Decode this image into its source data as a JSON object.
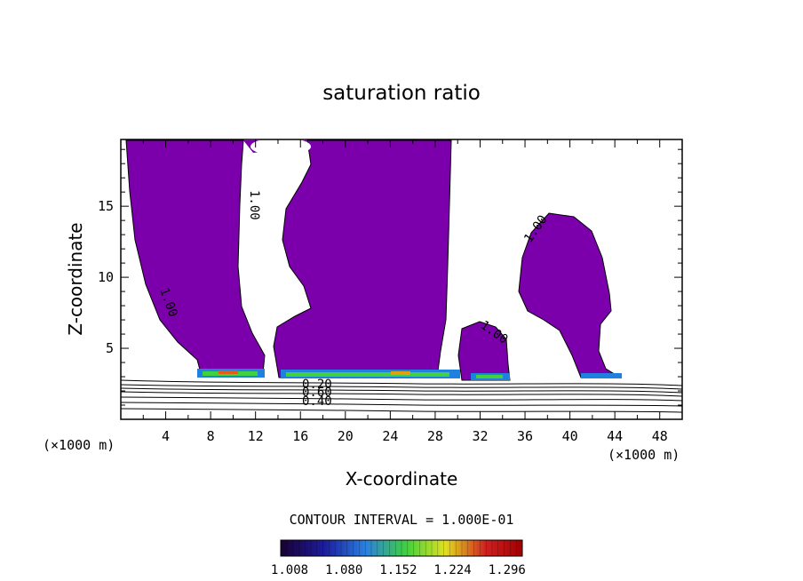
{
  "chart_data": {
    "type": "contour",
    "title": "saturation ratio",
    "xlabel": "X-coordinate",
    "ylabel": "Z-coordinate",
    "x_unit_left": "(×1000 m)",
    "x_unit_right": "(×1000 m)",
    "xlim": [
      0,
      50
    ],
    "ylim": [
      0,
      19.7
    ],
    "x_ticks": [
      4,
      8,
      12,
      16,
      20,
      24,
      28,
      32,
      36,
      40,
      44,
      48
    ],
    "y_ticks": [
      5,
      10,
      15
    ],
    "contour_labels": [
      "1.00",
      "1.00",
      "1.00",
      "1.00",
      "0.40",
      "0.60",
      "0.20"
    ],
    "contour_interval_text": "CONTOUR INTERVAL = 1.000E-01",
    "colorbar_ticks": [
      "1.008",
      "1.080",
      "1.152",
      "1.224",
      "1.296"
    ],
    "colors": {
      "fill": "#7b00ab",
      "colorbar_stops": [
        "#1a0033",
        "#1c1c9c",
        "#2a7fe0",
        "#3fd13f",
        "#e0e020",
        "#d02020",
        "#a00000"
      ]
    }
  }
}
